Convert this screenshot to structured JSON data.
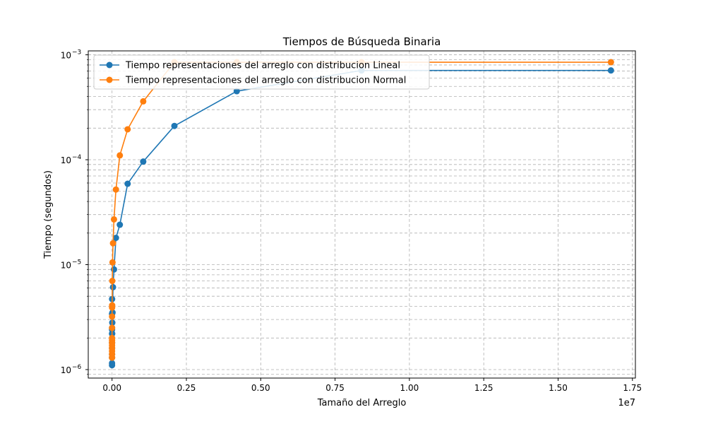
{
  "chart_data": {
    "type": "line",
    "title": "Tiempos de Búsqueda Binaria",
    "xlabel": "Tamaño del Arreglo",
    "ylabel": "Tiempo (segundos)",
    "x_offset_label": "1e7",
    "xlim": [
      -800000,
      17600000
    ],
    "ylim": [
      8.3e-07,
      0.00109
    ],
    "yscale": "log",
    "grid": true,
    "legend_position": "top-left",
    "x_ticks": [
      {
        "value": 0,
        "label": "0.00"
      },
      {
        "value": 2500000,
        "label": "0.25"
      },
      {
        "value": 5000000,
        "label": "0.50"
      },
      {
        "value": 7500000,
        "label": "0.75"
      },
      {
        "value": 10000000,
        "label": "1.00"
      },
      {
        "value": 12500000,
        "label": "1.25"
      },
      {
        "value": 15000000,
        "label": "1.50"
      },
      {
        "value": 17500000,
        "label": "1.75"
      }
    ],
    "y_major_ticks": [
      {
        "value": 1e-06,
        "base": "10",
        "exp": "−6"
      },
      {
        "value": 1e-05,
        "base": "10",
        "exp": "−5"
      },
      {
        "value": 0.0001,
        "base": "10",
        "exp": "−4"
      },
      {
        "value": 0.001,
        "base": "10",
        "exp": "−3"
      }
    ],
    "x": [
      2,
      4,
      8,
      16,
      32,
      64,
      128,
      256,
      512,
      1024,
      2048,
      4096,
      8192,
      16384,
      32768,
      65536,
      131072,
      262144,
      524288,
      1048576,
      2097152,
      4194304,
      8388608,
      16777216
    ],
    "series": [
      {
        "name": "Tiempo representaciones del arreglo con distribucion Lineal",
        "color": "#1f77b4",
        "values": [
          1.1e-06,
          1.15e-06,
          1.3e-06,
          1.4e-06,
          1.6e-06,
          1.8e-06,
          2.2e-06,
          2.4e-06,
          2.5e-06,
          3.4e-06,
          4.7e-06,
          2.2e-06,
          2.8e-06,
          3.5e-06,
          6.1e-06,
          9e-06,
          1.8e-05,
          2.4e-05,
          5.9e-05,
          9.6e-05,
          0.00021,
          0.00045,
          0.00071,
          0.00071
        ]
      },
      {
        "name": "Tiempo representaciones del arreglo con distribucion Normal",
        "color": "#ff7f0e",
        "values": [
          1.3e-06,
          1.4e-06,
          1.5e-06,
          1.6e-06,
          1.7e-06,
          1.8e-06,
          1.9e-06,
          2e-06,
          2.5e-06,
          3.2e-06,
          3.9e-06,
          4.1e-06,
          7e-06,
          1.05e-05,
          1.6e-05,
          2.7e-05,
          5.2e-05,
          0.00011,
          0.000195,
          0.00036,
          0.00085,
          0.00085,
          0.00085,
          0.00085
        ]
      }
    ]
  }
}
